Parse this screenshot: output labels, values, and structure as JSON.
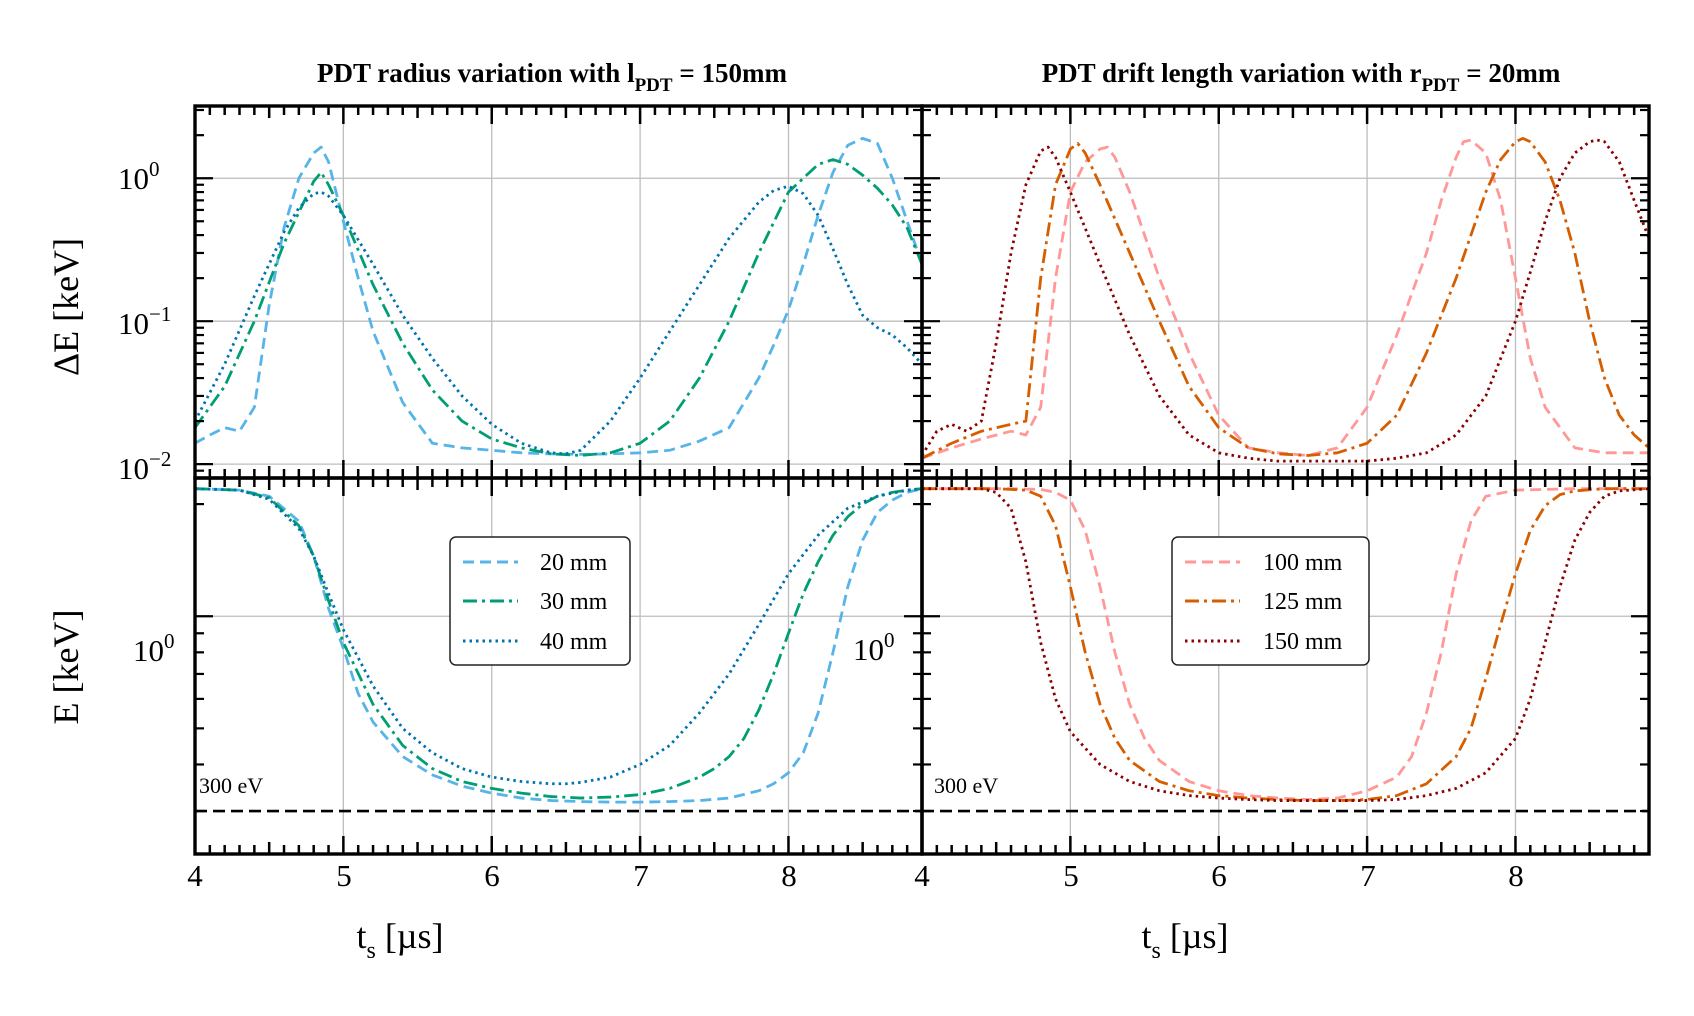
{
  "chart_data": [
    {
      "type": "line",
      "title": "PDT radius variation with l",
      "title_sub": "PDT",
      "title_tail": " = 150mm",
      "xlabel": "t",
      "xlabel_sub": "s",
      "xlabel_unit": " [µs]",
      "xlim": [
        4,
        8.9
      ],
      "xticks": [
        "4",
        "5",
        "6",
        "7",
        "8",
        "4"
      ],
      "top": {
        "ylabel": "ΔE [keV]",
        "yscale": "log",
        "ylim": [
          0.008,
          3.2
        ],
        "yticks": [
          {
            "base": "10",
            "exp": "0"
          },
          {
            "base": "10",
            "exp": "−1"
          },
          {
            "base": "10",
            "exp": "−2"
          }
        ],
        "series": [
          {
            "name": "20 mm",
            "color": "#56B4E9",
            "dash": "dashed",
            "x": [
              4.0,
              4.1,
              4.2,
              4.3,
              4.4,
              4.5,
              4.6,
              4.7,
              4.8,
              4.85,
              4.9,
              5.0,
              5.1,
              5.2,
              5.4,
              5.6,
              5.8,
              6.0,
              6.2,
              6.4,
              6.6,
              6.8,
              7.0,
              7.2,
              7.4,
              7.6,
              7.8,
              7.9,
              8.0,
              8.1,
              8.2,
              8.3,
              8.4,
              8.5,
              8.6,
              8.7,
              8.8,
              8.9
            ],
            "y": [
              0.014,
              0.016,
              0.018,
              0.017,
              0.025,
              0.13,
              0.45,
              1.0,
              1.5,
              1.65,
              1.3,
              0.5,
              0.2,
              0.085,
              0.027,
              0.014,
              0.013,
              0.0125,
              0.012,
              0.0118,
              0.0117,
              0.0118,
              0.012,
              0.0125,
              0.0145,
              0.018,
              0.04,
              0.068,
              0.12,
              0.25,
              0.55,
              1.1,
              1.7,
              1.9,
              1.75,
              1.0,
              0.5,
              0.25
            ]
          },
          {
            "name": "30 mm",
            "color": "#009E73",
            "dash": "dashdot",
            "x": [
              4.0,
              4.2,
              4.4,
              4.6,
              4.8,
              4.85,
              4.9,
              5.0,
              5.2,
              5.4,
              5.6,
              5.8,
              6.0,
              6.2,
              6.4,
              6.6,
              6.8,
              7.0,
              7.2,
              7.4,
              7.6,
              7.8,
              8.0,
              8.2,
              8.3,
              8.4,
              8.5,
              8.6,
              8.7,
              8.8,
              8.9
            ],
            "y": [
              0.018,
              0.035,
              0.1,
              0.35,
              0.95,
              1.1,
              0.9,
              0.55,
              0.18,
              0.07,
              0.033,
              0.02,
              0.015,
              0.013,
              0.0118,
              0.0115,
              0.012,
              0.014,
              0.02,
              0.04,
              0.1,
              0.3,
              0.8,
              1.25,
              1.35,
              1.25,
              1.05,
              0.85,
              0.65,
              0.45,
              0.25
            ]
          },
          {
            "name": "40 mm",
            "color": "#0072B2",
            "dash": "dotted",
            "x": [
              4.0,
              4.2,
              4.4,
              4.6,
              4.7,
              4.8,
              4.85,
              4.9,
              5.0,
              5.2,
              5.4,
              5.6,
              5.8,
              6.0,
              6.2,
              6.4,
              6.5,
              6.6,
              6.8,
              7.0,
              7.2,
              7.4,
              7.6,
              7.8,
              7.9,
              8.0,
              8.1,
              8.2,
              8.3,
              8.4,
              8.5,
              8.6,
              8.7,
              8.8,
              8.9
            ],
            "y": [
              0.02,
              0.05,
              0.15,
              0.42,
              0.62,
              0.78,
              0.8,
              0.75,
              0.55,
              0.25,
              0.11,
              0.055,
              0.03,
              0.019,
              0.014,
              0.012,
              0.0118,
              0.0125,
              0.02,
              0.04,
              0.085,
              0.18,
              0.38,
              0.68,
              0.82,
              0.88,
              0.78,
              0.55,
              0.32,
              0.18,
              0.11,
              0.09,
              0.08,
              0.065,
              0.05
            ]
          }
        ]
      },
      "bottom": {
        "ylabel": "E [keV]",
        "yscale": "log",
        "ylim": [
          0.23,
          2.35
        ],
        "yticks": [
          {
            "base": "10",
            "exp": "0"
          }
        ],
        "extra_label": {
          "base": "10",
          "exp": "0"
        },
        "hline": {
          "value": 0.3,
          "label": "300 eV"
        },
        "series": [
          {
            "name": "20 mm",
            "color": "#56B4E9",
            "dash": "dashed",
            "x": [
              4.0,
              4.3,
              4.5,
              4.7,
              4.8,
              4.9,
              5.0,
              5.1,
              5.2,
              5.4,
              5.6,
              5.8,
              6.0,
              6.2,
              6.4,
              6.6,
              6.8,
              7.0,
              7.2,
              7.4,
              7.6,
              7.8,
              7.9,
              8.0,
              8.1,
              8.2,
              8.3,
              8.4,
              8.5,
              8.6,
              8.7,
              8.8,
              8.9
            ],
            "y": [
              2.2,
              2.18,
              2.1,
              1.8,
              1.45,
              1.05,
              0.82,
              0.62,
              0.52,
              0.42,
              0.375,
              0.35,
              0.335,
              0.325,
              0.32,
              0.318,
              0.317,
              0.317,
              0.318,
              0.32,
              0.325,
              0.34,
              0.355,
              0.38,
              0.43,
              0.55,
              0.8,
              1.2,
              1.6,
              1.9,
              2.05,
              2.15,
              2.2
            ]
          },
          {
            "name": "30 mm",
            "color": "#009E73",
            "dash": "dashdot",
            "x": [
              4.0,
              4.3,
              4.5,
              4.7,
              4.8,
              4.9,
              5.0,
              5.2,
              5.4,
              5.6,
              5.8,
              6.0,
              6.2,
              6.4,
              6.6,
              6.8,
              7.0,
              7.2,
              7.4,
              7.5,
              7.6,
              7.7,
              7.8,
              7.9,
              8.0,
              8.1,
              8.2,
              8.3,
              8.4,
              8.5,
              8.6,
              8.7,
              8.8,
              8.9
            ],
            "y": [
              2.2,
              2.18,
              2.08,
              1.75,
              1.45,
              1.1,
              0.85,
              0.58,
              0.45,
              0.39,
              0.36,
              0.345,
              0.335,
              0.328,
              0.325,
              0.327,
              0.332,
              0.345,
              0.37,
              0.39,
              0.42,
              0.47,
              0.56,
              0.7,
              0.9,
              1.15,
              1.4,
              1.65,
              1.85,
              2.0,
              2.1,
              2.15,
              2.18,
              2.2
            ]
          },
          {
            "name": "40 mm",
            "color": "#0072B2",
            "dash": "dotted",
            "x": [
              4.0,
              4.3,
              4.5,
              4.7,
              4.8,
              4.9,
              5.0,
              5.2,
              5.4,
              5.6,
              5.8,
              6.0,
              6.2,
              6.4,
              6.5,
              6.6,
              6.8,
              7.0,
              7.2,
              7.4,
              7.6,
              7.8,
              8.0,
              8.2,
              8.4,
              8.6,
              8.8,
              8.9
            ],
            "y": [
              2.2,
              2.18,
              2.06,
              1.72,
              1.45,
              1.15,
              0.92,
              0.65,
              0.5,
              0.43,
              0.39,
              0.37,
              0.36,
              0.355,
              0.355,
              0.358,
              0.37,
              0.4,
              0.45,
              0.55,
              0.7,
              0.95,
              1.3,
              1.65,
              1.95,
              2.1,
              2.18,
              2.2
            ]
          }
        ]
      }
    },
    {
      "type": "line",
      "title": "PDT drift length variation with r",
      "title_sub": "PDT",
      "title_tail": " = 20mm",
      "xlabel": "t",
      "xlabel_sub": "s",
      "xlabel_unit": " [µs]",
      "xlim": [
        4,
        8.9
      ],
      "xticks": [
        "4",
        "5",
        "6",
        "7",
        "8"
      ],
      "top": {
        "ylabel": "",
        "yscale": "log",
        "ylim": [
          0.008,
          3.2
        ],
        "series": [
          {
            "name": "100 mm",
            "color": "#FF9896",
            "dash": "dashed",
            "x": [
              4.0,
              4.2,
              4.4,
              4.6,
              4.7,
              4.8,
              4.9,
              5.0,
              5.1,
              5.2,
              5.25,
              5.3,
              5.4,
              5.6,
              5.8,
              6.0,
              6.2,
              6.4,
              6.6,
              6.8,
              7.0,
              7.2,
              7.4,
              7.5,
              7.6,
              7.65,
              7.7,
              7.8,
              7.9,
              8.0,
              8.1,
              8.2,
              8.4,
              8.6,
              8.8,
              8.9
            ],
            "y": [
              0.011,
              0.013,
              0.015,
              0.017,
              0.016,
              0.025,
              0.2,
              0.8,
              1.3,
              1.6,
              1.65,
              1.4,
              0.8,
              0.2,
              0.06,
              0.022,
              0.013,
              0.012,
              0.0115,
              0.013,
              0.025,
              0.08,
              0.3,
              0.7,
              1.4,
              1.8,
              1.85,
              1.5,
              0.7,
              0.2,
              0.055,
              0.025,
              0.013,
              0.012,
              0.012,
              0.012
            ]
          },
          {
            "name": "125 mm",
            "color": "#D55E00",
            "dash": "dashdot",
            "x": [
              4.0,
              4.2,
              4.4,
              4.6,
              4.7,
              4.8,
              4.9,
              5.0,
              5.05,
              5.1,
              5.2,
              5.4,
              5.6,
              5.8,
              6.0,
              6.2,
              6.4,
              6.6,
              6.8,
              7.0,
              7.2,
              7.4,
              7.6,
              7.8,
              7.9,
              8.0,
              8.05,
              8.1,
              8.2,
              8.3,
              8.4,
              8.5,
              8.6,
              8.7,
              8.8,
              8.9
            ],
            "y": [
              0.011,
              0.014,
              0.017,
              0.019,
              0.02,
              0.2,
              0.9,
              1.6,
              1.75,
              1.5,
              0.9,
              0.3,
              0.1,
              0.035,
              0.018,
              0.013,
              0.0118,
              0.0115,
              0.012,
              0.014,
              0.022,
              0.06,
              0.2,
              0.8,
              1.35,
              1.8,
              1.9,
              1.8,
              1.3,
              0.7,
              0.3,
              0.1,
              0.04,
              0.022,
              0.016,
              0.013
            ]
          },
          {
            "name": "150 mm",
            "color": "#8B0000",
            "dash": "dotted",
            "x": [
              4.0,
              4.1,
              4.2,
              4.3,
              4.4,
              4.5,
              4.6,
              4.7,
              4.8,
              4.85,
              4.9,
              5.0,
              5.2,
              5.4,
              5.6,
              5.8,
              6.0,
              6.2,
              6.4,
              6.6,
              6.8,
              7.0,
              7.2,
              7.4,
              7.6,
              7.8,
              8.0,
              8.1,
              8.2,
              8.3,
              8.4,
              8.5,
              8.55,
              8.6,
              8.7,
              8.8,
              8.9
            ],
            "y": [
              0.0115,
              0.017,
              0.019,
              0.017,
              0.02,
              0.07,
              0.3,
              0.9,
              1.55,
              1.65,
              1.4,
              0.8,
              0.25,
              0.08,
              0.03,
              0.016,
              0.012,
              0.011,
              0.0105,
              0.0105,
              0.0105,
              0.0105,
              0.011,
              0.012,
              0.016,
              0.03,
              0.1,
              0.22,
              0.5,
              1.0,
              1.5,
              1.8,
              1.85,
              1.8,
              1.3,
              0.7,
              0.38
            ]
          }
        ]
      },
      "bottom": {
        "ylabel": "",
        "yscale": "log",
        "ylim": [
          0.23,
          2.35
        ],
        "hline": {
          "value": 0.3,
          "label": "300 eV"
        },
        "series": [
          {
            "name": "100 mm",
            "color": "#FF9896",
            "dash": "dashed",
            "x": [
              4.0,
              4.6,
              4.8,
              4.9,
              5.0,
              5.1,
              5.2,
              5.3,
              5.4,
              5.5,
              5.6,
              5.8,
              6.0,
              6.2,
              6.4,
              6.6,
              6.8,
              7.0,
              7.2,
              7.3,
              7.4,
              7.5,
              7.6,
              7.7,
              7.8,
              8.0,
              8.2,
              8.4,
              8.6,
              8.9
            ],
            "y": [
              2.2,
              2.2,
              2.19,
              2.15,
              2.05,
              1.7,
              1.2,
              0.8,
              0.58,
              0.47,
              0.41,
              0.36,
              0.34,
              0.33,
              0.325,
              0.322,
              0.325,
              0.34,
              0.37,
              0.42,
              0.55,
              0.8,
              1.3,
              1.8,
              2.1,
              2.18,
              2.19,
              2.2,
              2.2,
              2.2
            ]
          },
          {
            "name": "125 mm",
            "color": "#D55E00",
            "dash": "dashdot",
            "x": [
              4.0,
              4.5,
              4.7,
              4.8,
              4.9,
              5.0,
              5.1,
              5.2,
              5.3,
              5.4,
              5.6,
              5.8,
              6.0,
              6.2,
              6.4,
              6.6,
              6.8,
              7.0,
              7.2,
              7.4,
              7.6,
              7.7,
              7.8,
              7.9,
              8.0,
              8.1,
              8.2,
              8.3,
              8.4,
              8.6,
              8.9
            ],
            "y": [
              2.2,
              2.2,
              2.18,
              2.1,
              1.75,
              1.2,
              0.8,
              0.58,
              0.47,
              0.41,
              0.36,
              0.34,
              0.33,
              0.325,
              0.322,
              0.32,
              0.32,
              0.322,
              0.33,
              0.355,
              0.42,
              0.5,
              0.68,
              0.95,
              1.3,
              1.7,
              1.98,
              2.12,
              2.17,
              2.2,
              2.2
            ]
          },
          {
            "name": "150 mm",
            "color": "#8B0000",
            "dash": "dotted",
            "x": [
              4.0,
              4.4,
              4.5,
              4.6,
              4.7,
              4.8,
              4.9,
              5.0,
              5.2,
              5.4,
              5.6,
              5.8,
              6.0,
              6.2,
              6.4,
              6.6,
              6.8,
              7.0,
              7.2,
              7.4,
              7.6,
              7.8,
              8.0,
              8.1,
              8.2,
              8.3,
              8.4,
              8.5,
              8.6,
              8.7,
              8.9
            ],
            "y": [
              2.2,
              2.2,
              2.15,
              1.95,
              1.4,
              0.85,
              0.6,
              0.49,
              0.4,
              0.36,
              0.34,
              0.33,
              0.325,
              0.322,
              0.32,
              0.32,
              0.32,
              0.32,
              0.322,
              0.33,
              0.345,
              0.38,
              0.47,
              0.6,
              0.85,
              1.2,
              1.6,
              1.9,
              2.1,
              2.17,
              2.2
            ]
          }
        ]
      },
      "legend": "upper-center"
    }
  ]
}
